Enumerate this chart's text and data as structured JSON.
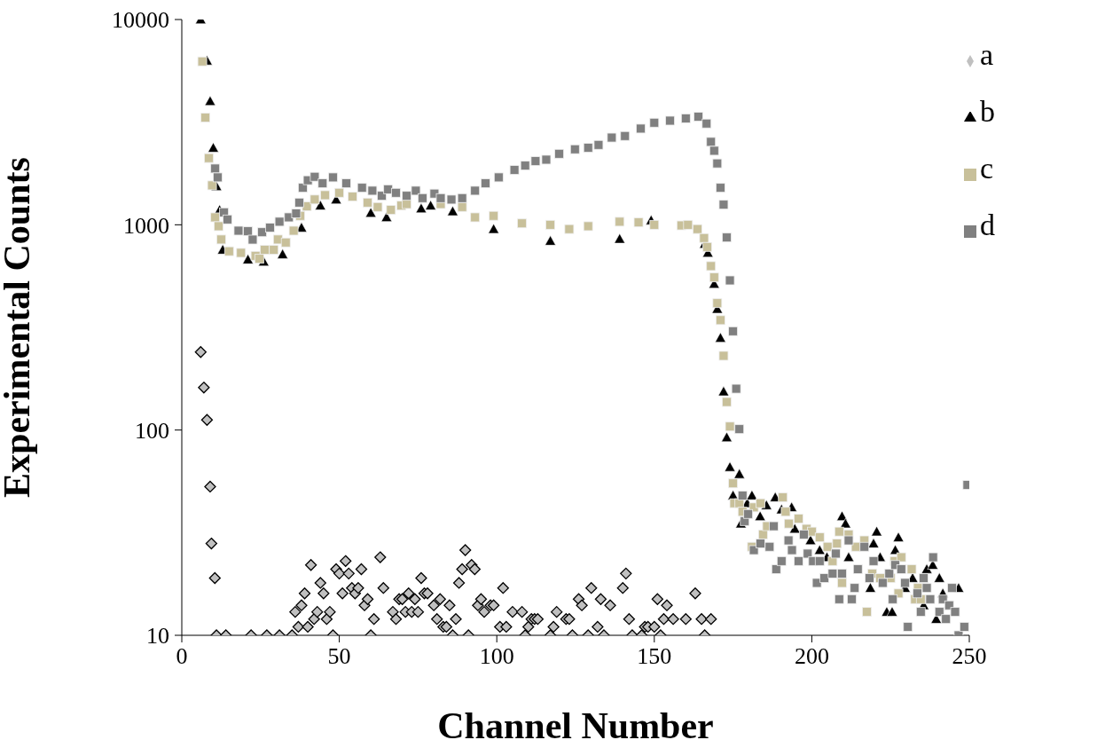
{
  "chart_data": {
    "type": "scatter",
    "xlabel": "Channel Number",
    "ylabel": "Experimental Counts",
    "log": "y",
    "xlim": [
      0,
      250
    ],
    "xticks": [
      0,
      50,
      100,
      150,
      200,
      250
    ],
    "ylim": [
      10,
      10000
    ],
    "yticks": [
      10,
      100,
      1000,
      10000
    ],
    "legend": "top right",
    "grid": false,
    "series": [
      {
        "name": "a",
        "color": "#c0c0c0",
        "marker": "diamond",
        "x": [
          6,
          7,
          8,
          9,
          9.4,
          10.5,
          11,
          14,
          22,
          27,
          31,
          35,
          36,
          37,
          38,
          39,
          40,
          41,
          42,
          43,
          44,
          45,
          46,
          47,
          48,
          49,
          50,
          51,
          52,
          53,
          54,
          55,
          56,
          57,
          58,
          59,
          60,
          61,
          63,
          64,
          67,
          68,
          69,
          70,
          71,
          72,
          73,
          74,
          75,
          76,
          77,
          78,
          80,
          81,
          82,
          83,
          84,
          85,
          86,
          87,
          88,
          89,
          90,
          91,
          92,
          93,
          94,
          95,
          96,
          98,
          99,
          101,
          102,
          103,
          105,
          108,
          109,
          110,
          111,
          112,
          113,
          117,
          118,
          119,
          122,
          123,
          124,
          126,
          127,
          129,
          130,
          132,
          133,
          134,
          136,
          140,
          141,
          142,
          143,
          146,
          147,
          148,
          150,
          151,
          152,
          153,
          154,
          156,
          160,
          163,
          165,
          166,
          168
        ],
        "values": [
          240,
          161,
          112,
          53,
          28,
          19,
          10,
          10,
          10,
          10,
          10,
          10,
          13,
          11,
          14,
          16,
          11,
          22,
          12,
          13,
          18,
          16,
          12,
          13,
          10,
          21,
          20,
          16,
          23,
          20,
          17,
          16,
          17,
          21,
          14,
          15,
          10,
          12,
          24,
          17,
          13,
          12,
          15,
          15,
          13,
          16,
          13,
          15,
          13,
          19,
          16,
          16,
          14,
          12,
          15,
          11,
          11,
          14,
          10,
          12,
          18,
          21,
          26,
          10,
          22,
          21,
          14,
          15,
          13,
          14,
          14,
          11,
          17,
          11,
          13,
          13,
          10,
          11,
          12,
          12,
          12,
          10,
          11,
          13,
          12,
          12,
          10,
          15,
          14,
          10,
          17,
          11,
          15,
          10,
          14,
          17,
          20,
          12,
          10,
          10,
          11,
          11,
          11,
          15,
          10,
          12,
          14,
          12,
          12,
          16,
          12,
          10,
          12
        ]
      },
      {
        "name": "b",
        "color": "#000000",
        "marker": "triangle",
        "x": [
          6,
          8,
          9,
          10,
          11,
          12,
          13,
          21,
          26,
          32,
          38,
          44,
          49,
          60,
          65,
          76,
          79,
          86,
          99,
          117,
          139,
          149,
          166,
          167,
          169,
          170,
          171,
          172,
          173,
          174,
          175,
          177,
          177.5,
          179.5,
          181,
          183.6,
          185.6,
          188.4,
          190.4,
          193.6,
          194.6,
          199.6,
          202.5,
          204.8,
          209.6,
          210.7,
          211.7,
          218.6,
          219.6,
          220.6,
          221.7,
          223.8,
          225.5,
          226.5,
          227.5,
          229.6,
          232,
          235.5,
          236.5,
          238.4,
          239.5,
          240.5,
          241.6,
          246.6
        ],
        "values": [
          10000,
          6300,
          4000,
          2370,
          1540,
          1180,
          755,
          677,
          661,
          718,
          968,
          1240,
          1327,
          1142,
          1088,
          1200,
          1240,
          1162,
          953,
          834,
          853,
          1051,
          807,
          730,
          515,
          389,
          281,
          154,
          92,
          66,
          48,
          61,
          35,
          44,
          48,
          38,
          43,
          47,
          41,
          42,
          33,
          29,
          26,
          24,
          38,
          35,
          24,
          17,
          28,
          32,
          24,
          13,
          13,
          26,
          30,
          17,
          19,
          14,
          21,
          22,
          12,
          19,
          16,
          17
        ]
      },
      {
        "name": "c",
        "color": "#c8c09a",
        "marker": "square",
        "x": [
          6.5,
          7.5,
          8.6,
          9.6,
          10.6,
          11.7,
          12.5,
          15,
          18.8,
          23.4,
          24.6,
          26.3,
          29.2,
          30.5,
          33,
          35.5,
          37.6,
          39.7,
          42.2,
          45.5,
          50,
          54.2,
          59,
          62.2,
          66.4,
          69.7,
          71.4,
          82.2,
          89,
          93.1,
          99,
          108,
          117,
          123,
          129,
          139,
          145,
          150,
          158.6,
          160.7,
          163.7,
          165.8,
          166.8,
          168,
          169,
          170,
          171,
          172,
          173,
          174,
          175,
          175.4,
          177,
          178,
          181,
          181.6,
          183.7,
          184.5,
          185.8,
          190.8,
          191.7,
          192.7,
          195.8,
          198.3,
          200,
          202.5,
          205,
          206.6,
          208,
          208.7,
          209.6,
          211.7,
          214,
          216.7,
          217.5,
          219.2,
          221.7,
          225,
          226.3,
          227.5,
          228.4,
          231.7,
          232.8,
          233.7,
          234.6
        ],
        "values": [
          6250,
          3325,
          2113,
          1556,
          1087,
          984,
          848,
          743,
          730,
          706,
          683,
          755,
          755,
          848,
          820,
          936,
          1106,
          1230,
          1328,
          1394,
          1432,
          1371,
          1283,
          1221,
          1181,
          1240,
          1262,
          1262,
          1221,
          1087,
          1106,
          1016,
          1000,
          953,
          984,
          1035,
          1027,
          1000,
          993,
          1000,
          953,
          862,
          780,
          629,
          554,
          415,
          343,
          230,
          137,
          104,
          55,
          44,
          44,
          40,
          27,
          42,
          44,
          31,
          34,
          47,
          40,
          35,
          37,
          33,
          32,
          30,
          27,
          23,
          28,
          32,
          18,
          31,
          27,
          29,
          13,
          20,
          19,
          19,
          23,
          16,
          24,
          21,
          15,
          17,
          15
        ]
      },
      {
        "name": "d",
        "color": "#808080",
        "marker": "square",
        "x": [
          10.6,
          11.4,
          13.4,
          14.5,
          18,
          21,
          22.5,
          25.5,
          28,
          31,
          34,
          36.3,
          37.3,
          38.4,
          40,
          42.2,
          44.7,
          48,
          52.2,
          57.2,
          60.5,
          63.5,
          65.5,
          68,
          71.4,
          74.3,
          76.4,
          80.2,
          82.2,
          85.6,
          89,
          93.1,
          96.4,
          100.6,
          105.6,
          109,
          112.3,
          115.7,
          119.8,
          124.8,
          129,
          132.3,
          136.5,
          140.7,
          145.7,
          150,
          155,
          160,
          164,
          166.6,
          168,
          169,
          170,
          171,
          172,
          173,
          174,
          175,
          176,
          177,
          178,
          178.7,
          179.8,
          181.6,
          183.7,
          186.6,
          187.9,
          188.7,
          190.4,
          192.6,
          193.7,
          195.8,
          197.5,
          198.7,
          200.4,
          201.6,
          202.5,
          204,
          206.6,
          207.6,
          208.7,
          209.6,
          211.7,
          212.7,
          213.6,
          214.6,
          216.7,
          218.3,
          219.6,
          222.5,
          224.6,
          225.7,
          226.5,
          228.4,
          229.6,
          230.5,
          233.5,
          234.6,
          235.5,
          236.5,
          237.6,
          238.5,
          240.5,
          241.6,
          242.6,
          243.6,
          244.5,
          245.5,
          246.6,
          248.4,
          249.4
        ],
        "values": [
          1880,
          1702,
          1150,
          1062,
          936,
          930,
          847,
          920,
          968,
          1035,
          1087,
          1135,
          1283,
          1514,
          1648,
          1714,
          1592,
          1702,
          1592,
          1514,
          1466,
          1384,
          1489,
          1432,
          1384,
          1466,
          1349,
          1419,
          1349,
          1327,
          1349,
          1466,
          1592,
          1702,
          1849,
          1942,
          2042,
          2076,
          2218,
          2333,
          2371,
          2451,
          2660,
          2708,
          2942,
          3143,
          3216,
          3300,
          3360,
          3114,
          2535,
          2294,
          1991,
          1514,
          1253,
          867,
          536,
          303,
          159,
          101,
          48,
          36,
          39,
          26,
          28,
          27,
          34,
          21,
          23,
          29,
          26,
          23,
          31,
          25,
          23,
          18,
          23,
          19,
          20,
          25,
          15,
          20,
          29,
          15,
          17,
          21,
          27,
          19,
          23,
          18,
          20,
          15,
          22,
          21,
          18,
          11,
          16,
          13,
          19,
          17,
          15,
          24,
          13,
          15,
          12,
          14,
          17,
          13,
          10,
          11,
          54
        ]
      }
    ]
  }
}
